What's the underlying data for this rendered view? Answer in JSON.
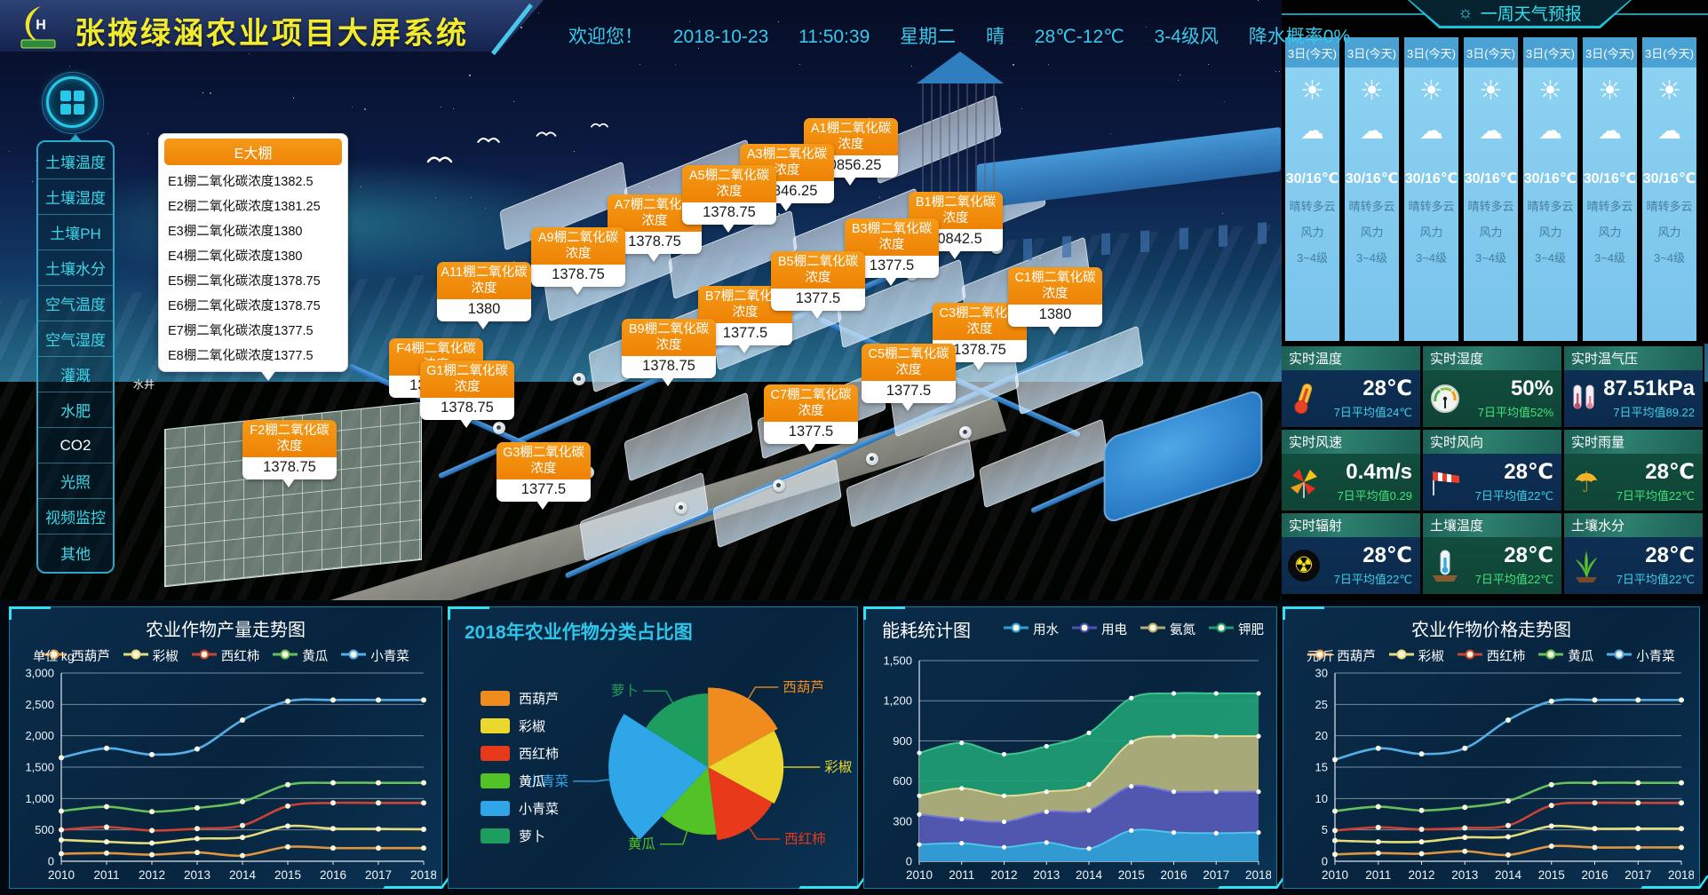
{
  "header": {
    "title": "张掖绿涵农业项目大屏系统",
    "logo_letter": "H"
  },
  "welcome": {
    "greeting": "欢迎您！",
    "date": "2018-10-23",
    "time": "11:50:39",
    "weekday": "星期二",
    "weather": "晴",
    "temp_range": "28℃-12℃",
    "wind": "3-4级风",
    "precip": "降水概率0%"
  },
  "weather_panel": {
    "title": "一周天气预报",
    "sun_icon": "☼",
    "day": {
      "label": "3日(今天)",
      "day_icon": "☀",
      "night_icon": "☁",
      "temp": "30/16℃",
      "condition": "晴转多云",
      "wind_label": "风力",
      "wind_level": "3~4级"
    },
    "day_count": 7
  },
  "sidebar": {
    "items": [
      {
        "label": "土壤温度",
        "active": false
      },
      {
        "label": "土壤湿度",
        "active": false
      },
      {
        "label": "土壤PH",
        "active": false
      },
      {
        "label": "土壤水分",
        "active": false
      },
      {
        "label": "空气温度",
        "active": false
      },
      {
        "label": "空气湿度",
        "active": false
      },
      {
        "label": "灌溉",
        "active": false
      },
      {
        "label": "水肥",
        "active": false
      },
      {
        "label": "CO2",
        "active": true
      },
      {
        "label": "光照",
        "active": false
      },
      {
        "label": "视频监控",
        "active": false
      },
      {
        "label": "其他",
        "active": false
      }
    ]
  },
  "scene": {
    "well_label": "水井",
    "e_panel": {
      "title": "E大棚",
      "rows": [
        "E1棚二氧化碳浓度1382.5",
        "E2棚二氧化碳浓度1381.25",
        "E3棚二氧化碳浓度1380",
        "E4棚二氧化碳浓度1380",
        "E5棚二氧化碳浓度1378.75",
        "E6棚二氧化碳浓度1378.75",
        "E7棚二氧化碳浓度1377.5",
        "E8棚二氧化碳浓度1377.5"
      ]
    },
    "callouts": [
      {
        "id": "A1",
        "title": "A1棚二氧化碳浓度",
        "value": "20856.25"
      },
      {
        "id": "A3",
        "title": "A3棚二氧化碳浓度",
        "value": "20846.25"
      },
      {
        "id": "A5",
        "title": "A5棚二氧化碳浓度",
        "value": "1378.75"
      },
      {
        "id": "A7",
        "title": "A7棚二氧化碳浓度",
        "value": "1378.75"
      },
      {
        "id": "A9",
        "title": "A9棚二氧化碳浓度",
        "value": "1378.75"
      },
      {
        "id": "A11",
        "title": "A11棚二氧化碳浓度",
        "value": "1380"
      },
      {
        "id": "B1",
        "title": "B1棚二氧化碳浓度",
        "value": "20842.5"
      },
      {
        "id": "B3",
        "title": "B3棚二氧化碳浓度",
        "value": "1377.5"
      },
      {
        "id": "B5",
        "title": "B5棚二氧化碳浓度",
        "value": "1377.5"
      },
      {
        "id": "B7",
        "title": "B7棚二氧化碳浓度",
        "value": "1377.5"
      },
      {
        "id": "B9",
        "title": "B9棚二氧化碳浓度",
        "value": "1378.75"
      },
      {
        "id": "C1",
        "title": "C1棚二氧化碳浓度",
        "value": "1380"
      },
      {
        "id": "C3",
        "title": "C3棚二氧化碳浓度",
        "value": "1378.75"
      },
      {
        "id": "C5",
        "title": "C5棚二氧化碳浓度",
        "value": "1377.5"
      },
      {
        "id": "C7",
        "title": "C7棚二氧化碳浓度",
        "value": "1377.5"
      },
      {
        "id": "F4",
        "title": "F4棚二氧化碳浓度",
        "value": "1378.75"
      },
      {
        "id": "G1",
        "title": "G1棚二氧化碳浓度",
        "value": "1378.75"
      },
      {
        "id": "F2",
        "title": "F2棚二氧化碳浓度",
        "value": "1378.75"
      },
      {
        "id": "G3",
        "title": "G3棚二氧化碳浓度",
        "value": "1377.5"
      }
    ]
  },
  "stats": {
    "cells": [
      {
        "title": "实时温度",
        "value": "28℃",
        "avg": "7日平均值24℃",
        "icon": "thermo",
        "avg_color": "cyan"
      },
      {
        "title": "实时湿度",
        "value": "50%",
        "avg": "7日平均值52%",
        "icon": "gauge",
        "avg_color": "green"
      },
      {
        "title": "实时温气压",
        "value": "87.51kPa",
        "avg": "7日平均值89.22",
        "icon": "pressure",
        "avg_color": "cyan"
      },
      {
        "title": "实时风速",
        "value": "0.4m/s",
        "avg": "7日平均值0.29",
        "icon": "pinwheel",
        "avg_color": "green"
      },
      {
        "title": "实时风向",
        "value": "28℃",
        "avg": "7日平均值22℃",
        "icon": "windsock",
        "avg_color": "cyan"
      },
      {
        "title": "实时雨量",
        "value": "28℃",
        "avg": "7日平均值22℃",
        "icon": "umbrella",
        "avg_color": "green"
      },
      {
        "title": "实时辐射",
        "value": "28℃",
        "avg": "7日平均值22℃",
        "icon": "radiation",
        "avg_color": "cyan"
      },
      {
        "title": "土壤温度",
        "value": "28℃",
        "avg": "7日平均值22℃",
        "icon": "soilthermo",
        "avg_color": "green"
      },
      {
        "title": "土壤水分",
        "value": "28℃",
        "avg": "7日平均值22℃",
        "icon": "plant",
        "avg_color": "cyan"
      }
    ]
  },
  "chart_data": [
    {
      "type": "line",
      "title": "农业作物产量走势图",
      "unit": "单位 kg",
      "categories": [
        "2010",
        "2011",
        "2012",
        "2013",
        "2014",
        "2015",
        "2016",
        "2017",
        "2018"
      ],
      "ylim": [
        0,
        3000
      ],
      "ytick": 500,
      "legend_position": "top",
      "grid": true,
      "series": [
        {
          "name": "西葫芦",
          "color": "#e0953f",
          "values": [
            120,
            130,
            105,
            140,
            90,
            230,
            210,
            210,
            210
          ]
        },
        {
          "name": "彩椒",
          "color": "#e3de7a",
          "values": [
            340,
            310,
            290,
            360,
            380,
            560,
            520,
            515,
            510
          ]
        },
        {
          "name": "西红柿",
          "color": "#cc4333",
          "values": [
            500,
            545,
            490,
            520,
            570,
            880,
            930,
            930,
            930
          ]
        },
        {
          "name": "黄瓜",
          "color": "#66bf5a",
          "values": [
            800,
            870,
            790,
            850,
            950,
            1220,
            1250,
            1250,
            1250
          ]
        },
        {
          "name": "小青菜",
          "color": "#54aee8",
          "values": [
            1650,
            1800,
            1700,
            1790,
            2250,
            2550,
            2570,
            2570,
            2570
          ]
        }
      ]
    },
    {
      "type": "pie",
      "title": "2018年农业作物分类占比图",
      "legend_position": "left",
      "slices": [
        {
          "name": "西葫芦",
          "color": "#f08c1e",
          "percent": 17,
          "radius": 0.8
        },
        {
          "name": "彩椒",
          "color": "#ecd82c",
          "percent": 16,
          "radius": 0.76
        },
        {
          "name": "西红柿",
          "color": "#e8391a",
          "percent": 15,
          "radius": 0.74
        },
        {
          "name": "黄瓜",
          "color": "#53c226",
          "percent": 14,
          "radius": 0.68
        },
        {
          "name": "小青菜",
          "color": "#2ea6e8",
          "percent": 22,
          "radius": 1.0
        },
        {
          "name": "萝卜",
          "color": "#1d9e5f",
          "percent": 16,
          "radius": 0.74
        }
      ]
    },
    {
      "type": "area",
      "title": "能耗统计图",
      "stacked": true,
      "legend_position": "top-right",
      "grid": true,
      "categories": [
        "2010",
        "2011",
        "2012",
        "2013",
        "2014",
        "2015",
        "2016",
        "2017",
        "2018"
      ],
      "ylim": [
        0,
        1500
      ],
      "ytick": 300,
      "series": [
        {
          "name": "用水",
          "color": "#2e9fd6",
          "line": "#4fc3e8",
          "values": [
            125,
            135,
            105,
            140,
            95,
            230,
            215,
            210,
            215
          ]
        },
        {
          "name": "用电",
          "color": "#4a50b4",
          "line": "#7278d8",
          "values": [
            225,
            180,
            190,
            230,
            285,
            330,
            305,
            310,
            305
          ]
        },
        {
          "name": "氨氮",
          "color": "#b3aa78",
          "line": "#e3dc96",
          "values": [
            140,
            230,
            195,
            150,
            195,
            330,
            415,
            415,
            415
          ]
        },
        {
          "name": "钾肥",
          "color": "#1f9e74",
          "line": "#3cc492",
          "values": [
            320,
            340,
            310,
            340,
            385,
            330,
            320,
            320,
            320
          ]
        }
      ]
    },
    {
      "type": "line",
      "title": "农业作物价格走势图",
      "unit": "元/斤",
      "categories": [
        "2010",
        "2011",
        "2012",
        "2013",
        "2014",
        "2015",
        "2016",
        "2017",
        "2018"
      ],
      "ylim": [
        0,
        30
      ],
      "ytick": 5,
      "legend_position": "top",
      "grid": true,
      "series": [
        {
          "name": "西葫芦",
          "color": "#e0953f",
          "values": [
            1.1,
            1.3,
            1.2,
            1.6,
            1.0,
            2.4,
            2.2,
            2.2,
            2.2
          ]
        },
        {
          "name": "彩椒",
          "color": "#e3de7a",
          "values": [
            3.3,
            3.1,
            3.1,
            3.8,
            3.9,
            5.6,
            5.2,
            5.2,
            5.2
          ]
        },
        {
          "name": "西红柿",
          "color": "#cc4333",
          "values": [
            4.9,
            5.4,
            5.1,
            5.3,
            5.7,
            8.9,
            9.3,
            9.3,
            9.3
          ]
        },
        {
          "name": "黄瓜",
          "color": "#66bf5a",
          "values": [
            8.0,
            8.7,
            8.1,
            8.6,
            9.6,
            12.2,
            12.5,
            12.5,
            12.5
          ]
        },
        {
          "name": "小青菜",
          "color": "#54aee8",
          "values": [
            16.2,
            18.0,
            17.1,
            18.0,
            22.5,
            25.5,
            25.7,
            25.7,
            25.7
          ]
        }
      ]
    }
  ]
}
